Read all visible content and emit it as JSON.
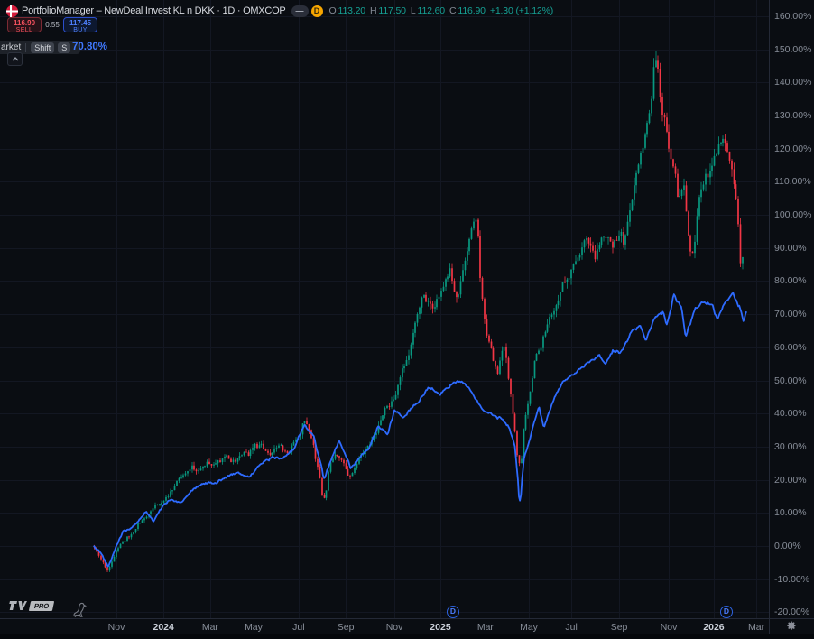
{
  "header": {
    "title": "PortfolioManager – NewDeal Invest KL n DKK · 1D · OMXCOP",
    "collapse_badge": "—",
    "delayed_badge": "D",
    "ohlc": {
      "o_label": "O",
      "o_value": "113.20",
      "h_label": "H",
      "h_value": "117.50",
      "l_label": "L",
      "l_value": "112.60",
      "c_label": "C",
      "c_value": "116.90",
      "change": "+1.30 (+1.12%)"
    }
  },
  "trade_panel": {
    "sell_price": "116.90",
    "sell_label": "SELL",
    "spread": "0.55",
    "buy_price": "117.45",
    "buy_label": "BUY"
  },
  "shortcut_tooltip": {
    "label": "arket",
    "shift_key": "Shift",
    "s_key": "S"
  },
  "comparison_value": "70.80%",
  "footer": {
    "pro_label": "PRO"
  },
  "colors": {
    "up": "#089981",
    "down": "#f23645",
    "line": "#2e6bff",
    "accent_blue": "#2962ff",
    "delayed_orange": "#f7a600"
  },
  "chart_data": {
    "type": "candlestick",
    "title": "PortfolioManager – NewDeal Invest KL n DKK (candles) vs OMXCOP (line), percent change, 1D",
    "y_axis": {
      "min": -20,
      "max": 160,
      "step": 10,
      "format": "percent",
      "labels": [
        {
          "v": 160,
          "t": "160.00%"
        },
        {
          "v": 150,
          "t": "150.00%"
        },
        {
          "v": 140,
          "t": "140.00%"
        },
        {
          "v": 130,
          "t": "130.00%"
        },
        {
          "v": 120,
          "t": "120.00%"
        },
        {
          "v": 110,
          "t": "110.00%"
        },
        {
          "v": 100,
          "t": "100.00%"
        },
        {
          "v": 90,
          "t": "90.00%"
        },
        {
          "v": 80,
          "t": "80.00%"
        },
        {
          "v": 70,
          "t": "70.00%"
        },
        {
          "v": 60,
          "t": "60.00%"
        },
        {
          "v": 50,
          "t": "50.00%"
        },
        {
          "v": 40,
          "t": "40.00%"
        },
        {
          "v": 30,
          "t": "30.00%"
        },
        {
          "v": 20,
          "t": "20.00%"
        },
        {
          "v": 10,
          "t": "10.00%"
        },
        {
          "v": 0,
          "t": "0.00%"
        },
        {
          "v": -10,
          "t": "-10.00%"
        },
        {
          "v": -20,
          "t": "-20.00%"
        }
      ]
    },
    "x_axis": {
      "unit_note": "months since 2023-10-01",
      "ticks": [
        {
          "t": "Nov",
          "m": 1.0
        },
        {
          "t": "2024",
          "m": 3.05,
          "year": true
        },
        {
          "t": "Mar",
          "m": 5.08
        },
        {
          "t": "May",
          "m": 6.97
        },
        {
          "t": "Jul",
          "m": 8.93
        },
        {
          "t": "Sep",
          "m": 10.98
        },
        {
          "t": "Nov",
          "m": 13.1
        },
        {
          "t": "2025",
          "m": 15.1,
          "year": true
        },
        {
          "t": "Mar",
          "m": 17.06
        },
        {
          "t": "May",
          "m": 18.95
        },
        {
          "t": "Jul",
          "m": 20.8
        },
        {
          "t": "Sep",
          "m": 22.88
        },
        {
          "t": "Nov",
          "m": 25.04
        },
        {
          "t": "2026",
          "m": 27.0,
          "year": true
        },
        {
          "t": "Mar",
          "m": 28.85
        }
      ]
    },
    "events": [
      {
        "label": "D",
        "m": 15.65
      },
      {
        "label": "D",
        "m": 27.55
      }
    ],
    "series": [
      {
        "name": "NewDeal Invest KL n DKK",
        "type": "candles",
        "up_color": "#089981",
        "down_color": "#f23645",
        "pins": [
          [
            0,
            0
          ],
          [
            10.05,
            14.5
          ],
          [
            16.65,
            98.5
          ],
          [
            18.6,
            25
          ],
          [
            24.5,
            146.5
          ],
          [
            26.12,
            88.5
          ],
          [
            28.3,
            87.2
          ]
        ],
        "points": [
          [
            0,
            0
          ],
          [
            0.3,
            -3
          ],
          [
            0.65,
            -7.5
          ],
          [
            1.0,
            -2
          ],
          [
            1.4,
            2
          ],
          [
            1.8,
            4
          ],
          [
            2.2,
            8
          ],
          [
            2.6,
            11
          ],
          [
            3.0,
            13
          ],
          [
            3.4,
            17
          ],
          [
            3.7,
            20
          ],
          [
            4.0,
            22
          ],
          [
            4.3,
            25.5
          ],
          [
            4.6,
            22
          ],
          [
            5.0,
            25
          ],
          [
            5.4,
            24
          ],
          [
            5.8,
            27
          ],
          [
            6.2,
            25
          ],
          [
            6.6,
            28
          ],
          [
            7.0,
            29
          ],
          [
            7.4,
            31
          ],
          [
            7.7,
            28
          ],
          [
            8.1,
            30
          ],
          [
            8.5,
            29
          ],
          [
            9.0,
            34
          ],
          [
            9.2,
            38
          ],
          [
            9.6,
            32
          ],
          [
            10.05,
            15
          ],
          [
            10.3,
            22
          ],
          [
            10.6,
            28
          ],
          [
            10.9,
            26
          ],
          [
            11.2,
            22
          ],
          [
            11.5,
            26
          ],
          [
            11.9,
            29
          ],
          [
            12.2,
            33
          ],
          [
            12.5,
            38
          ],
          [
            12.9,
            43
          ],
          [
            13.2,
            46
          ],
          [
            13.5,
            52
          ],
          [
            13.8,
            58
          ],
          [
            14.1,
            68
          ],
          [
            14.4,
            78
          ],
          [
            14.65,
            74
          ],
          [
            14.85,
            71
          ],
          [
            15.05,
            76
          ],
          [
            15.3,
            80
          ],
          [
            15.55,
            84
          ],
          [
            15.75,
            78
          ],
          [
            15.95,
            77
          ],
          [
            16.15,
            86
          ],
          [
            16.4,
            92
          ],
          [
            16.65,
            98.5
          ],
          [
            16.85,
            86
          ],
          [
            17.05,
            72
          ],
          [
            17.2,
            64
          ],
          [
            17.35,
            62
          ],
          [
            17.5,
            57
          ],
          [
            17.65,
            54
          ],
          [
            17.8,
            60
          ],
          [
            17.95,
            63
          ],
          [
            18.1,
            52
          ],
          [
            18.25,
            43
          ],
          [
            18.4,
            34
          ],
          [
            18.55,
            27
          ],
          [
            18.65,
            25
          ],
          [
            18.8,
            38
          ],
          [
            18.95,
            44
          ],
          [
            19.1,
            50
          ],
          [
            19.3,
            58
          ],
          [
            19.45,
            60
          ],
          [
            19.7,
            65
          ],
          [
            19.95,
            72
          ],
          [
            20.2,
            75
          ],
          [
            20.5,
            80
          ],
          [
            20.8,
            84
          ],
          [
            21.1,
            90
          ],
          [
            21.45,
            95
          ],
          [
            21.9,
            89
          ],
          [
            22.3,
            96
          ],
          [
            22.65,
            90
          ],
          [
            22.95,
            95
          ],
          [
            23.15,
            92
          ],
          [
            23.4,
            103
          ],
          [
            23.7,
            112
          ],
          [
            24.0,
            122
          ],
          [
            24.3,
            132
          ],
          [
            24.45,
            144
          ],
          [
            24.55,
            146.5
          ],
          [
            24.65,
            138
          ],
          [
            24.8,
            133
          ],
          [
            24.95,
            127
          ],
          [
            25.15,
            122
          ],
          [
            25.35,
            116
          ],
          [
            25.5,
            104
          ],
          [
            25.62,
            108
          ],
          [
            25.75,
            112
          ],
          [
            25.9,
            99
          ],
          [
            26.0,
            92
          ],
          [
            26.12,
            89
          ],
          [
            26.35,
            104
          ],
          [
            26.55,
            110
          ],
          [
            26.75,
            113
          ],
          [
            26.95,
            116
          ],
          [
            27.15,
            119
          ],
          [
            27.35,
            123
          ],
          [
            27.5,
            126
          ],
          [
            27.7,
            119
          ],
          [
            27.9,
            113
          ],
          [
            28.07,
            102
          ],
          [
            28.18,
            91
          ],
          [
            28.3,
            87
          ]
        ]
      },
      {
        "name": "OMXCOP",
        "type": "line",
        "color": "#2e6bff",
        "last_label": "70.80%",
        "pins": [
          [
            0,
            0
          ],
          [
            10.05,
            20.5
          ],
          [
            18.55,
            13.7
          ],
          [
            25.27,
            76
          ],
          [
            25.78,
            63.5
          ],
          [
            28.42,
            70.8
          ]
        ],
        "points": [
          [
            0,
            0
          ],
          [
            0.3,
            -2
          ],
          [
            0.65,
            -6.3
          ],
          [
            1.0,
            0
          ],
          [
            1.3,
            4.5
          ],
          [
            1.7,
            5.5
          ],
          [
            2.0,
            8
          ],
          [
            2.3,
            10.4
          ],
          [
            2.6,
            7.4
          ],
          [
            3.0,
            12
          ],
          [
            3.3,
            14
          ],
          [
            3.8,
            13
          ],
          [
            4.3,
            17
          ],
          [
            4.8,
            19
          ],
          [
            5.3,
            19
          ],
          [
            5.8,
            21
          ],
          [
            6.3,
            22
          ],
          [
            6.8,
            21
          ],
          [
            7.3,
            25
          ],
          [
            7.8,
            27
          ],
          [
            8.2,
            26
          ],
          [
            8.7,
            29
          ],
          [
            9.2,
            37
          ],
          [
            9.6,
            33
          ],
          [
            10.05,
            20.5
          ],
          [
            10.4,
            27
          ],
          [
            10.7,
            32
          ],
          [
            11.2,
            23
          ],
          [
            11.6,
            27
          ],
          [
            12.0,
            30
          ],
          [
            12.4,
            36.5
          ],
          [
            12.8,
            34
          ],
          [
            13.1,
            41
          ],
          [
            13.5,
            39
          ],
          [
            14.0,
            43
          ],
          [
            14.6,
            48
          ],
          [
            15.1,
            46
          ],
          [
            15.6,
            49
          ],
          [
            16.0,
            50
          ],
          [
            16.3,
            47.5
          ],
          [
            16.9,
            41.8
          ],
          [
            17.4,
            40
          ],
          [
            17.8,
            38
          ],
          [
            18.1,
            36
          ],
          [
            18.35,
            30
          ],
          [
            18.55,
            13.7
          ],
          [
            18.75,
            27
          ],
          [
            19.0,
            33
          ],
          [
            19.4,
            42
          ],
          [
            19.6,
            36
          ],
          [
            20.0,
            44
          ],
          [
            20.5,
            50
          ],
          [
            21.0,
            52.5
          ],
          [
            21.6,
            56
          ],
          [
            22.0,
            57.5
          ],
          [
            22.3,
            54.7
          ],
          [
            22.6,
            59
          ],
          [
            22.9,
            58
          ],
          [
            23.4,
            64.5
          ],
          [
            23.8,
            66.4
          ],
          [
            24.05,
            61.5
          ],
          [
            24.4,
            69
          ],
          [
            24.8,
            71
          ],
          [
            24.95,
            66.3
          ],
          [
            25.27,
            76
          ],
          [
            25.58,
            72.6
          ],
          [
            25.78,
            63.5
          ],
          [
            26.17,
            71.3
          ],
          [
            26.57,
            73.6
          ],
          [
            26.96,
            73
          ],
          [
            27.16,
            68.1
          ],
          [
            27.55,
            74
          ],
          [
            27.83,
            76
          ],
          [
            28.14,
            72.2
          ],
          [
            28.3,
            67.5
          ],
          [
            28.42,
            70.8
          ]
        ]
      }
    ]
  }
}
